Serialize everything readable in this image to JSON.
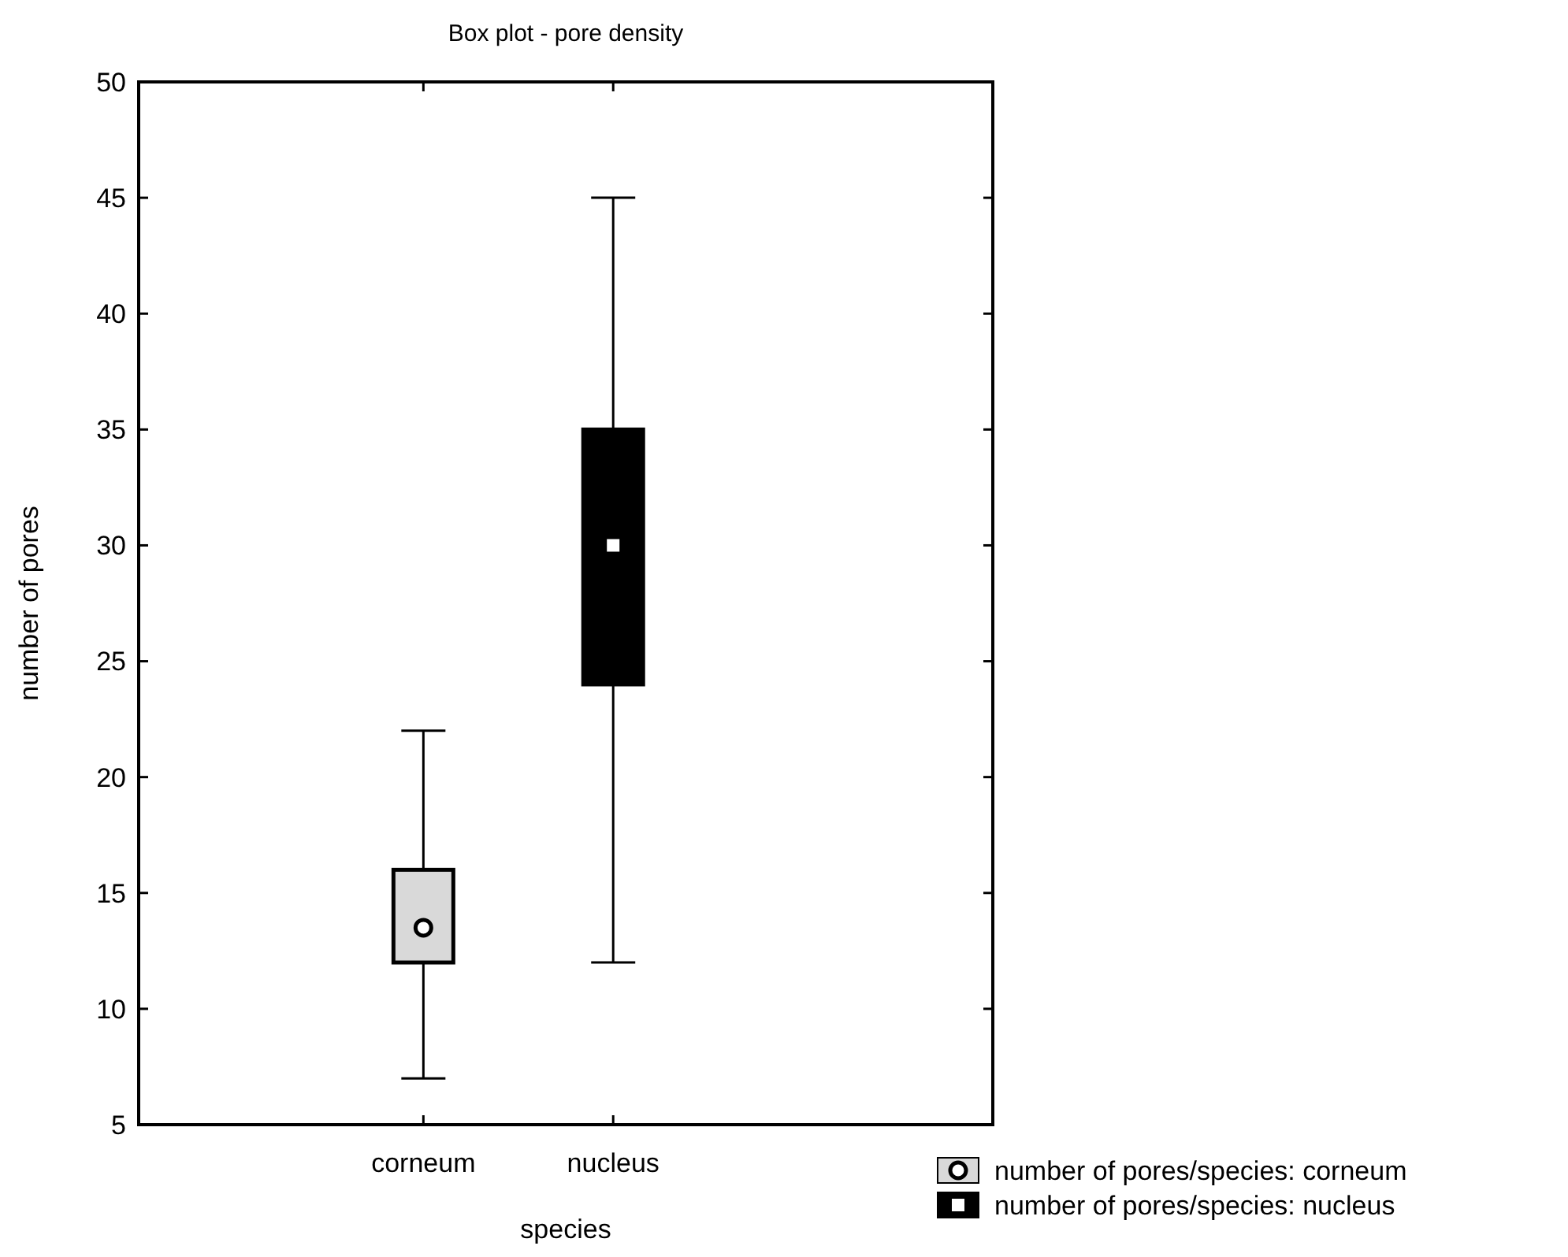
{
  "chart_data": {
    "type": "box",
    "title": "Box plot - pore density",
    "xlabel": "species",
    "ylabel": "number of pores",
    "categories": [
      "corneum",
      "nucleus"
    ],
    "series": [
      {
        "name": "number of pores/species: corneum",
        "color": "#d9d9d9",
        "marker": "circle",
        "boxes": [
          {
            "low": 7,
            "q1": 12,
            "median": 13.5,
            "q3": 16,
            "high": 22
          },
          null
        ]
      },
      {
        "name": "number of pores/species: nucleus",
        "color": "#000000",
        "marker": "square",
        "boxes": [
          null,
          {
            "low": 12,
            "q1": 24,
            "median": 30,
            "q3": 35,
            "high": 45
          }
        ]
      }
    ],
    "ylim": [
      5,
      50
    ],
    "yticks": [
      5,
      10,
      15,
      20,
      25,
      30,
      35,
      40,
      45,
      50
    ],
    "grid": false,
    "legend": "bottom right"
  }
}
